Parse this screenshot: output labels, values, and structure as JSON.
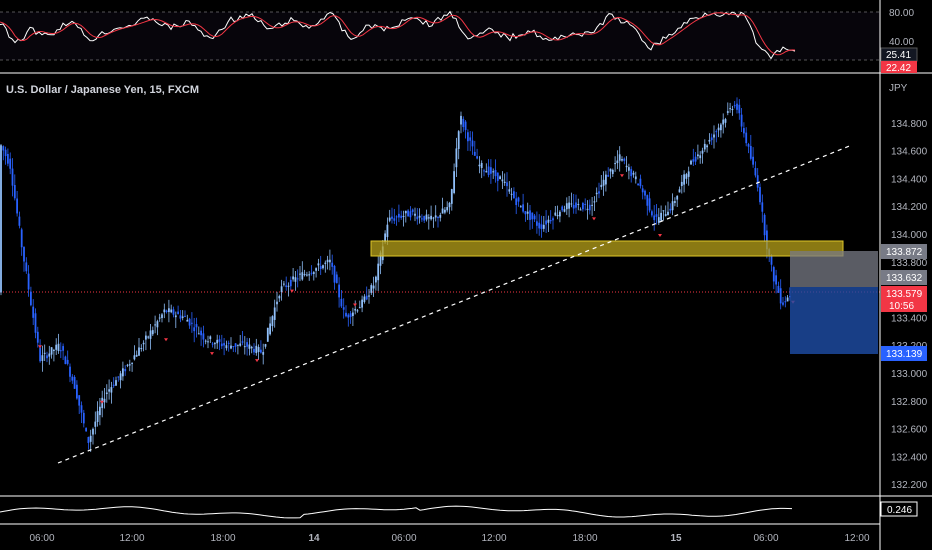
{
  "symbol_title": "U.S. Dollar / Japanese Yen, 15, FXCM",
  "currency": "JPY",
  "rsi": {
    "levels": [
      "80.00",
      "40.00"
    ],
    "value_white": "25.41",
    "value_red": "22.42"
  },
  "price_axis": {
    "ticks": [
      "134.800",
      "134.600",
      "134.400",
      "134.200",
      "134.000",
      "133.800",
      "133.400",
      "133.200",
      "133.000",
      "132.800",
      "132.600",
      "132.400",
      "132.200"
    ],
    "tick_values": [
      134.8,
      134.6,
      134.4,
      134.2,
      134.0,
      133.8,
      133.4,
      133.2,
      133.0,
      132.8,
      132.6,
      132.4,
      132.2
    ]
  },
  "price_tags": {
    "target": "133.872",
    "entry": "133.632",
    "current": "133.579",
    "countdown": "10:56",
    "stop": "133.139"
  },
  "oscillator_value": "0.246",
  "time_axis": [
    "06:00",
    "12:00",
    "18:00",
    "14",
    "06:00",
    "12:00",
    "18:00",
    "15",
    "06:00",
    "12:00"
  ],
  "colors": {
    "up_candle": "#90bff9",
    "down_candle": "#2962ff",
    "zone": "#b8a21a",
    "rsi_line": "#ffffff",
    "rsi_ma": "#f23645",
    "tag_red": "#f23645",
    "tag_blue": "#2962ff",
    "tag_gray": "#787b86"
  },
  "chart_data": {
    "type": "candlestick",
    "title": "U.S. Dollar / Japanese Yen, 15, FXCM",
    "ylim": [
      132.08,
      135.08
    ],
    "key_levels": {
      "support_zone": [
        133.8,
        133.91
      ],
      "long_target": 133.872,
      "long_entry": 133.632,
      "long_stop": 133.139,
      "last_price": 133.579
    },
    "trendline": {
      "from": [
        0,
        132.43
      ],
      "to": [
        1,
        134.62
      ]
    }
  }
}
